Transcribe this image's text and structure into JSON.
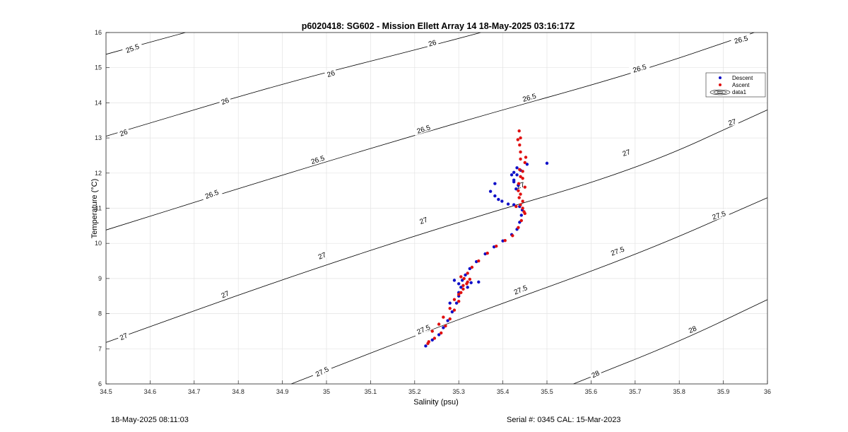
{
  "chart_data": {
    "type": "scatter",
    "title": "p6020418: SG602 - Mission Ellett Array 14 18-May-2025 03:16:17Z",
    "xlabel": "Salinity (psu)",
    "ylabel": "Temperature (°C)",
    "xlim": [
      34.5,
      36
    ],
    "ylim": [
      6,
      16
    ],
    "x_ticks": [
      "34.5",
      "34.6",
      "34.7",
      "34.8",
      "34.9",
      "35",
      "35.1",
      "35.2",
      "35.3",
      "35.4",
      "35.5",
      "35.6",
      "35.7",
      "35.8",
      "35.9",
      "36"
    ],
    "y_ticks": [
      "6",
      "7",
      "8",
      "9",
      "10",
      "11",
      "12",
      "13",
      "14",
      "15",
      "16"
    ],
    "grid": true,
    "legend_position": "top-right",
    "legend": [
      "Descent",
      "Ascent",
      "data1"
    ],
    "colors": {
      "descent": "#1010c8",
      "ascent": "#e01010",
      "contour": "#000000"
    },
    "contours": [
      {
        "label": "25.5",
        "points": [
          [
            34.5,
            15.38
          ],
          [
            34.68,
            16.0
          ]
        ]
      },
      {
        "label": "26",
        "points": [
          [
            34.5,
            13.05
          ],
          [
            34.9,
            14.55
          ],
          [
            35.2,
            15.5
          ],
          [
            35.35,
            16.0
          ]
        ]
      },
      {
        "label": "26.5",
        "points": [
          [
            34.5,
            10.38
          ],
          [
            34.9,
            11.95
          ],
          [
            35.3,
            13.45
          ],
          [
            35.7,
            14.85
          ],
          [
            35.97,
            16.0
          ]
        ]
      },
      {
        "label": "27",
        "points": [
          [
            34.5,
            7.18
          ],
          [
            34.9,
            8.98
          ],
          [
            35.3,
            10.62
          ],
          [
            35.7,
            12.08
          ],
          [
            36.0,
            13.8
          ]
        ]
      },
      {
        "label": "27.5",
        "points": [
          [
            34.92,
            6.0
          ],
          [
            35.3,
            7.85
          ],
          [
            35.7,
            9.65
          ],
          [
            36.0,
            11.3
          ]
        ]
      },
      {
        "label": "28",
        "points": [
          [
            35.56,
            6.0
          ],
          [
            35.8,
            7.2
          ],
          [
            36.0,
            8.4
          ]
        ]
      }
    ],
    "contour_labels": [
      {
        "text": "25.5",
        "x": 34.56,
        "y": 15.55,
        "angle": -20
      },
      {
        "text": "26",
        "x": 34.54,
        "y": 13.15,
        "angle": -20
      },
      {
        "text": "26",
        "x": 34.77,
        "y": 14.05,
        "angle": -20
      },
      {
        "text": "26",
        "x": 35.01,
        "y": 14.83,
        "angle": -18
      },
      {
        "text": "26",
        "x": 35.24,
        "y": 15.7,
        "angle": -16
      },
      {
        "text": "26.5",
        "x": 34.74,
        "y": 11.4,
        "angle": -20
      },
      {
        "text": "26.5",
        "x": 34.98,
        "y": 12.38,
        "angle": -18
      },
      {
        "text": "26.5",
        "x": 35.22,
        "y": 13.25,
        "angle": -18
      },
      {
        "text": "26.5",
        "x": 35.46,
        "y": 14.15,
        "angle": -16
      },
      {
        "text": "26.5",
        "x": 35.71,
        "y": 14.98,
        "angle": -16
      },
      {
        "text": "26.5",
        "x": 35.94,
        "y": 15.8,
        "angle": -14
      },
      {
        "text": "27",
        "x": 34.54,
        "y": 7.35,
        "angle": -24
      },
      {
        "text": "27",
        "x": 34.77,
        "y": 8.55,
        "angle": -24
      },
      {
        "text": "27",
        "x": 34.99,
        "y": 9.65,
        "angle": -22
      },
      {
        "text": "27",
        "x": 35.22,
        "y": 10.65,
        "angle": -20
      },
      {
        "text": "27",
        "x": 35.44,
        "y": 11.65,
        "angle": -18
      },
      {
        "text": "27",
        "x": 35.68,
        "y": 12.58,
        "angle": -18
      },
      {
        "text": "27",
        "x": 35.92,
        "y": 13.45,
        "angle": -16
      },
      {
        "text": "27.5",
        "x": 34.99,
        "y": 6.35,
        "angle": -26
      },
      {
        "text": "27.5",
        "x": 35.22,
        "y": 7.55,
        "angle": -24
      },
      {
        "text": "27.5",
        "x": 35.44,
        "y": 8.68,
        "angle": -22
      },
      {
        "text": "27.5",
        "x": 35.66,
        "y": 9.78,
        "angle": -20
      },
      {
        "text": "27.5",
        "x": 35.89,
        "y": 10.8,
        "angle": -18
      },
      {
        "text": "28",
        "x": 35.61,
        "y": 6.28,
        "angle": -26
      },
      {
        "text": "28",
        "x": 35.83,
        "y": 7.55,
        "angle": -24
      }
    ],
    "series": [
      {
        "name": "Descent",
        "points": [
          [
            35.225,
            7.08
          ],
          [
            35.24,
            7.25
          ],
          [
            35.255,
            7.4
          ],
          [
            35.265,
            7.6
          ],
          [
            35.275,
            7.8
          ],
          [
            35.285,
            8.05
          ],
          [
            35.295,
            8.3
          ],
          [
            35.3,
            8.5
          ],
          [
            35.305,
            8.75
          ],
          [
            35.308,
            8.95
          ],
          [
            35.315,
            9.1
          ],
          [
            35.325,
            9.28
          ],
          [
            35.34,
            9.48
          ],
          [
            35.36,
            9.7
          ],
          [
            35.38,
            9.9
          ],
          [
            35.4,
            10.07
          ],
          [
            35.42,
            10.25
          ],
          [
            35.432,
            10.4
          ],
          [
            35.438,
            10.6
          ],
          [
            35.442,
            10.8
          ],
          [
            35.444,
            10.95
          ],
          [
            35.438,
            11.05
          ],
          [
            35.425,
            11.1
          ],
          [
            35.412,
            11.12
          ],
          [
            35.398,
            11.2
          ],
          [
            35.39,
            11.25
          ],
          [
            35.382,
            11.35
          ],
          [
            35.372,
            11.48
          ],
          [
            35.43,
            11.55
          ],
          [
            35.435,
            11.65
          ],
          [
            35.425,
            11.8
          ],
          [
            35.432,
            11.95
          ],
          [
            35.44,
            12.08
          ],
          [
            35.455,
            12.25
          ],
          [
            35.5,
            12.28
          ],
          [
            35.432,
            12.15
          ],
          [
            35.425,
            12.02
          ],
          [
            35.42,
            11.95
          ],
          [
            35.425,
            11.75
          ],
          [
            35.382,
            11.7
          ],
          [
            35.29,
            8.95
          ],
          [
            35.3,
            8.85
          ],
          [
            35.328,
            8.88
          ],
          [
            35.345,
            8.9
          ],
          [
            35.32,
            8.75
          ],
          [
            35.3,
            8.6
          ],
          [
            35.28,
            8.3
          ]
        ]
      },
      {
        "name": "Ascent",
        "points": [
          [
            35.23,
            7.15
          ],
          [
            35.245,
            7.3
          ],
          [
            35.26,
            7.45
          ],
          [
            35.27,
            7.65
          ],
          [
            35.28,
            7.85
          ],
          [
            35.29,
            8.1
          ],
          [
            35.3,
            8.35
          ],
          [
            35.305,
            8.6
          ],
          [
            35.31,
            8.8
          ],
          [
            35.312,
            9.0
          ],
          [
            35.32,
            9.15
          ],
          [
            35.33,
            9.32
          ],
          [
            35.345,
            9.5
          ],
          [
            35.365,
            9.72
          ],
          [
            35.385,
            9.92
          ],
          [
            35.405,
            10.08
          ],
          [
            35.422,
            10.22
          ],
          [
            35.435,
            10.45
          ],
          [
            35.442,
            10.65
          ],
          [
            35.45,
            10.85
          ],
          [
            35.445,
            11.0
          ],
          [
            35.44,
            11.1
          ],
          [
            35.437,
            11.3
          ],
          [
            35.435,
            11.5
          ],
          [
            35.436,
            11.7
          ],
          [
            35.44,
            11.9
          ],
          [
            35.445,
            12.05
          ],
          [
            35.45,
            12.3
          ],
          [
            35.452,
            12.45
          ],
          [
            35.44,
            12.6
          ],
          [
            35.438,
            12.8
          ],
          [
            35.44,
            13.0
          ],
          [
            35.437,
            13.2
          ],
          [
            35.434,
            12.95
          ],
          [
            35.44,
            12.4
          ],
          [
            35.438,
            12.1
          ],
          [
            35.445,
            11.85
          ],
          [
            35.45,
            11.6
          ],
          [
            35.44,
            11.4
          ],
          [
            35.445,
            11.2
          ],
          [
            35.43,
            11.05
          ],
          [
            35.448,
            10.9
          ],
          [
            35.305,
            9.05
          ],
          [
            35.32,
            8.9
          ],
          [
            35.325,
            8.98
          ],
          [
            35.318,
            8.85
          ],
          [
            35.31,
            8.7
          ],
          [
            35.3,
            8.55
          ],
          [
            35.29,
            8.4
          ],
          [
            35.28,
            8.15
          ],
          [
            35.265,
            7.9
          ],
          [
            35.255,
            7.7
          ],
          [
            35.24,
            7.5
          ],
          [
            35.232,
            7.2
          ]
        ]
      }
    ]
  },
  "footer": {
    "left": "18-May-2025 08:11:03",
    "right": "Serial #: 0345  CAL: 15-Mar-2023"
  }
}
